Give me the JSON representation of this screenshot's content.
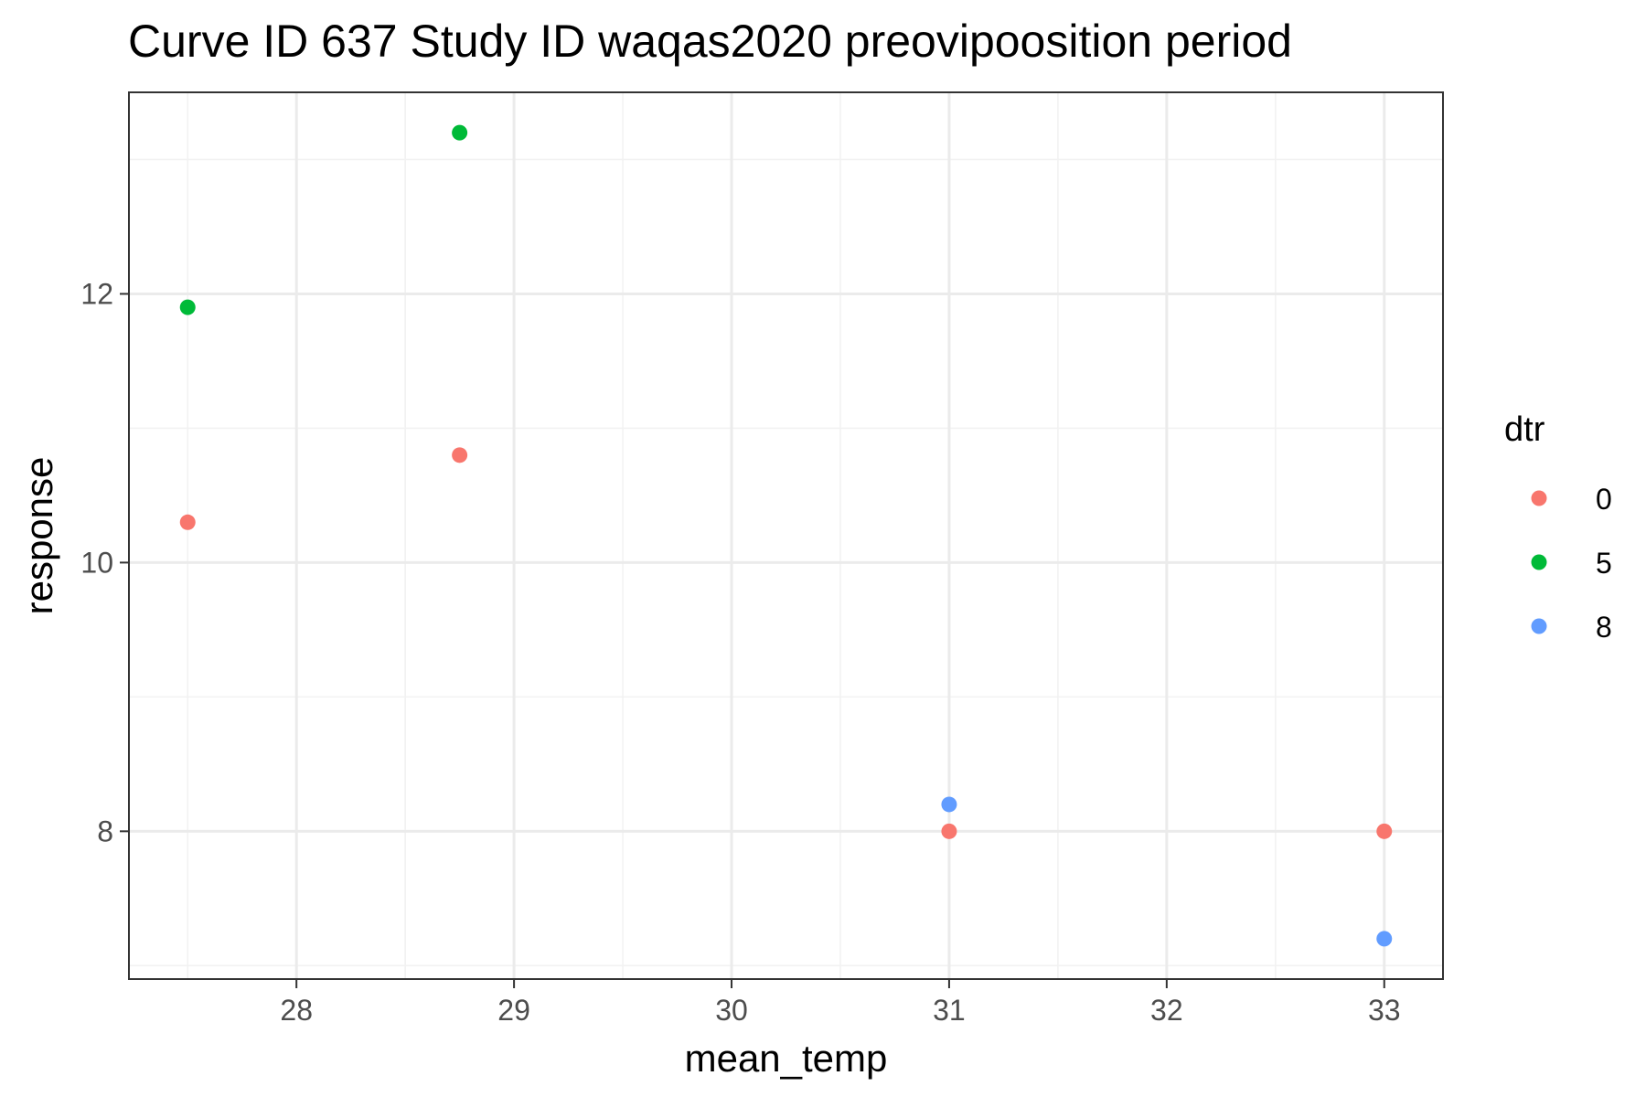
{
  "chart_data": {
    "type": "scatter",
    "title": "Curve ID 637 Study ID waqas2020 preovipoosition period",
    "xlabel": "mean_temp",
    "ylabel": "response",
    "xlim": [
      27.23,
      33.27
    ],
    "ylim": [
      6.9,
      13.5
    ],
    "x_ticks": [
      28,
      29,
      30,
      31,
      32,
      33
    ],
    "x_tick_labels": [
      "28",
      "29",
      "30",
      "31",
      "32",
      "33"
    ],
    "y_ticks": [
      8,
      10,
      12
    ],
    "y_tick_labels": [
      "8",
      "10",
      "12"
    ],
    "x_minor_ticks": [
      27.5,
      28.5,
      29.5,
      30.5,
      31.5,
      32.5
    ],
    "y_minor_ticks": [
      7,
      9,
      11,
      13
    ],
    "grid": true,
    "legend": {
      "title": "dtr",
      "placement": "right",
      "entries": [
        {
          "label": "0",
          "color": "#F8766D"
        },
        {
          "label": "5",
          "color": "#00BA38"
        },
        {
          "label": "8",
          "color": "#619CFF"
        }
      ]
    },
    "series": [
      {
        "name": "0",
        "color": "#F8766D",
        "points": [
          {
            "x": 27.5,
            "y": 10.3
          },
          {
            "x": 28.75,
            "y": 10.8
          },
          {
            "x": 31,
            "y": 8.0
          },
          {
            "x": 33,
            "y": 8.0
          }
        ]
      },
      {
        "name": "5",
        "color": "#00BA38",
        "points": [
          {
            "x": 27.5,
            "y": 11.9
          },
          {
            "x": 28.75,
            "y": 13.2
          }
        ]
      },
      {
        "name": "8",
        "color": "#619CFF",
        "points": [
          {
            "x": 31,
            "y": 8.2
          },
          {
            "x": 33,
            "y": 7.2
          }
        ]
      }
    ]
  }
}
